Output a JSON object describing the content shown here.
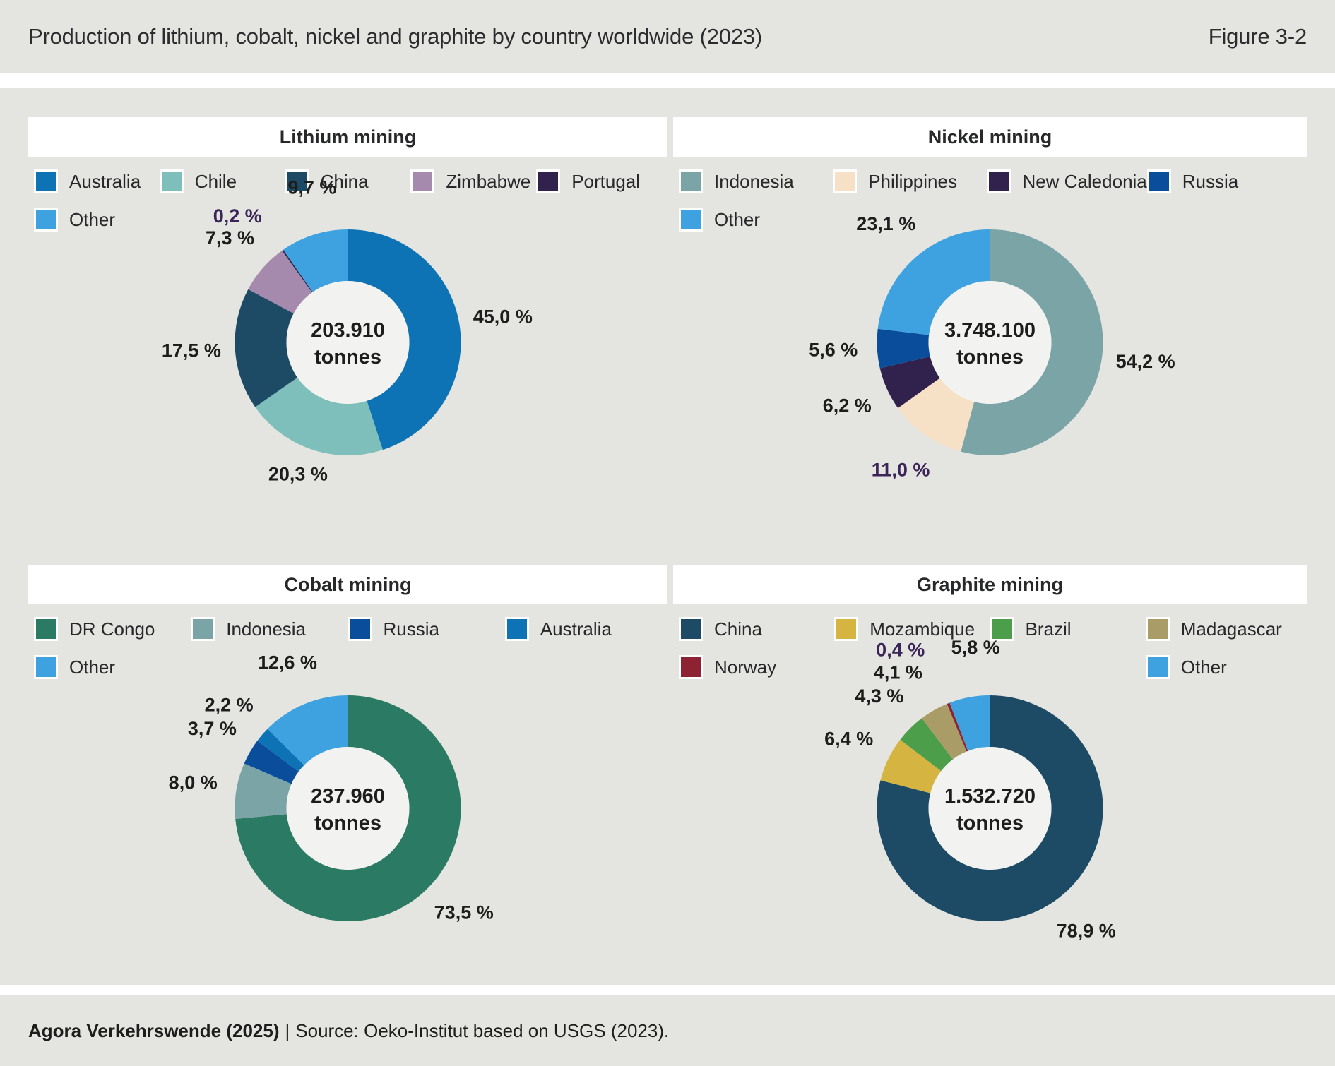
{
  "page": {
    "title": "Production of lithium, cobalt, nickel and graphite by country worldwide (2023)",
    "figure_label": "Figure 3-2",
    "footer": {
      "publisher": "Agora Verkehrswende (2025)",
      "divider": "|",
      "source": "Source: Oeko-Institut based on USGS (2023)."
    },
    "colors": {
      "background": "#e4e5e0",
      "panel_header": "#ffffff",
      "donut_hole": "#f2f3f0",
      "label_default": "#1d1d1b",
      "label_highlight": "#3b2558"
    }
  },
  "chart_data": [
    {
      "id": "lithium",
      "type": "donut",
      "title": "Lithium mining",
      "center_value": "203.910",
      "center_unit": "tonnes",
      "unit": "%",
      "slices": [
        {
          "label": "Australia",
          "value": 45.0,
          "display": "45,0 %",
          "color": "#0e73b5"
        },
        {
          "label": "Chile",
          "value": 20.3,
          "display": "20,3 %",
          "color": "#7fbfbb"
        },
        {
          "label": "China",
          "value": 17.5,
          "display": "17,5 %",
          "color": "#1d4b66"
        },
        {
          "label": "Zimbabwe",
          "value": 7.3,
          "display": "7,3 %",
          "color": "#a68aae"
        },
        {
          "label": "Portugal",
          "value": 0.2,
          "display": "0,2 %",
          "color": "#31214d",
          "label_color": "#3b2558"
        },
        {
          "label": "Other",
          "value": 9.7,
          "display": "9,7 %",
          "color": "#3ea2e0"
        }
      ]
    },
    {
      "id": "nickel",
      "type": "donut",
      "title": "Nickel mining",
      "center_value": "3.748.100",
      "center_unit": "tonnes",
      "unit": "%",
      "slices": [
        {
          "label": "Indonesia",
          "value": 54.2,
          "display": "54,2 %",
          "color": "#7ba4a6"
        },
        {
          "label": "Philippines",
          "value": 11.0,
          "display": "11,0 %",
          "color": "#f7e1c6",
          "label_color": "#3b2558"
        },
        {
          "label": "New Caledonia",
          "value": 6.2,
          "display": "6,2 %",
          "color": "#31214d"
        },
        {
          "label": "Russia",
          "value": 5.6,
          "display": "5,6 %",
          "color": "#0a4e9b"
        },
        {
          "label": "Other",
          "value": 23.1,
          "display": "23,1 %",
          "color": "#3ea2e0"
        }
      ]
    },
    {
      "id": "cobalt",
      "type": "donut",
      "title": "Cobalt mining",
      "center_value": "237.960",
      "center_unit": "tonnes",
      "unit": "%",
      "slices": [
        {
          "label": "DR Congo",
          "value": 73.5,
          "display": "73,5 %",
          "color": "#2b7a64"
        },
        {
          "label": "Indonesia",
          "value": 8.0,
          "display": "8,0 %",
          "color": "#7ba4a6"
        },
        {
          "label": "Russia",
          "value": 3.7,
          "display": "3,7 %",
          "color": "#0a4e9b"
        },
        {
          "label": "Australia",
          "value": 2.2,
          "display": "2,2 %",
          "color": "#0e73b5"
        },
        {
          "label": "Other",
          "value": 12.6,
          "display": "12,6 %",
          "color": "#3ea2e0"
        }
      ]
    },
    {
      "id": "graphite",
      "type": "donut",
      "title": "Graphite mining",
      "center_value": "1.532.720",
      "center_unit": "tonnes",
      "unit": "%",
      "slices": [
        {
          "label": "China",
          "value": 78.9,
          "display": "78,9 %",
          "color": "#1d4b66"
        },
        {
          "label": "Mozambique",
          "value": 6.4,
          "display": "6,4 %",
          "color": "#d6b442"
        },
        {
          "label": "Brazil",
          "value": 4.3,
          "display": "4,3 %",
          "color": "#4d9e4b"
        },
        {
          "label": "Madagascar",
          "value": 4.1,
          "display": "4,1 %",
          "color": "#a99c66"
        },
        {
          "label": "Norway",
          "value": 0.4,
          "display": "0,4 %",
          "color": "#8d2332",
          "label_color": "#3b2558"
        },
        {
          "label": "Other",
          "value": 5.8,
          "display": "5,8 %",
          "color": "#3ea2e0"
        }
      ]
    }
  ]
}
